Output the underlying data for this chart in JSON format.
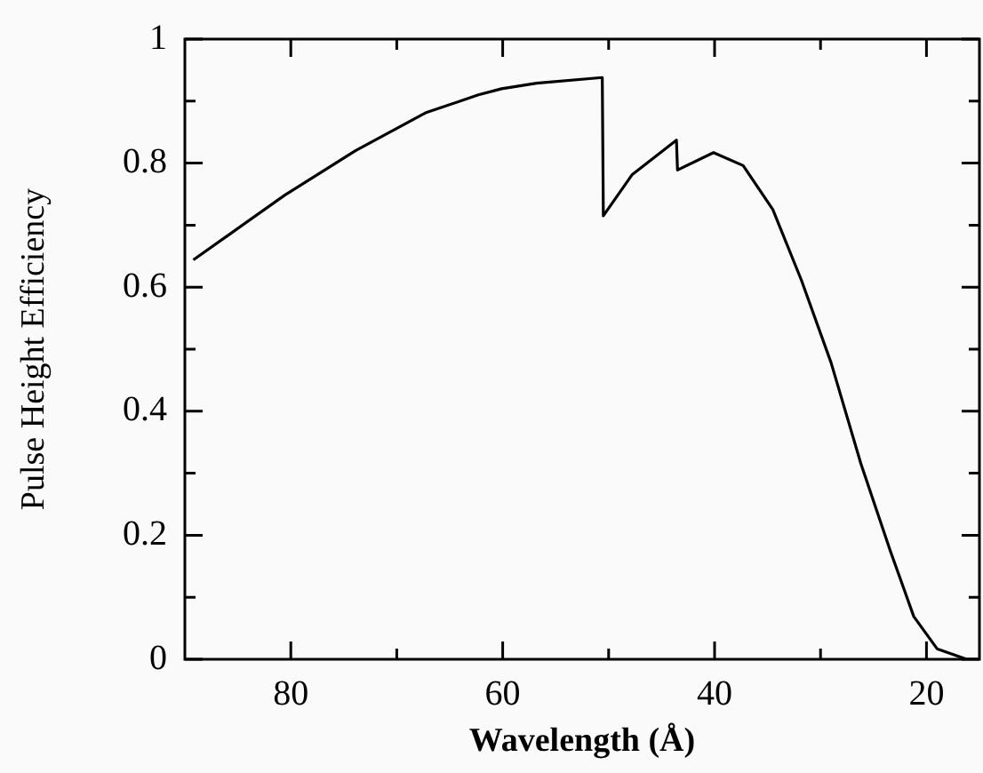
{
  "chart_data": {
    "type": "line",
    "xlabel": "Wavelength (Å)",
    "ylabel": "Pulse Height Efficiency",
    "series": [
      {
        "color": "#000000",
        "x": [
          89.2,
          80.6,
          73.9,
          67.3,
          62.3,
          60.1,
          56.8,
          50.6,
          50.5,
          47.8,
          43.6,
          43.5,
          40.1,
          37.3,
          34.5,
          31.8,
          29,
          26.2,
          23.4,
          21.2,
          19,
          16.2,
          15
        ],
        "values": [
          0.644,
          0.748,
          0.82,
          0.881,
          0.91,
          0.92,
          0.929,
          0.938,
          0.715,
          0.781,
          0.837,
          0.789,
          0.817,
          0.796,
          0.725,
          0.611,
          0.478,
          0.316,
          0.174,
          0.069,
          0.017,
          0,
          0
        ]
      }
    ],
    "xlim": [
      90,
      15
    ],
    "xticks": [
      80,
      {
        "value": 70,
        "label": null
      },
      60,
      {
        "value": 50,
        "label": null
      },
      40,
      {
        "value": 30,
        "label": null
      },
      20
    ],
    "ylim": [
      0,
      1
    ],
    "yticks": [
      0,
      {
        "value": 0.1,
        "label": null
      },
      0.2,
      {
        "value": 0.3,
        "label": null
      },
      0.4,
      {
        "value": 0.5,
        "label": null
      },
      0.6,
      {
        "value": 0.7,
        "label": null
      },
      0.8,
      {
        "value": 0.9,
        "label": null
      },
      1
    ],
    "grid": false,
    "legend": false,
    "marker": "none",
    "line_style": "solid"
  }
}
